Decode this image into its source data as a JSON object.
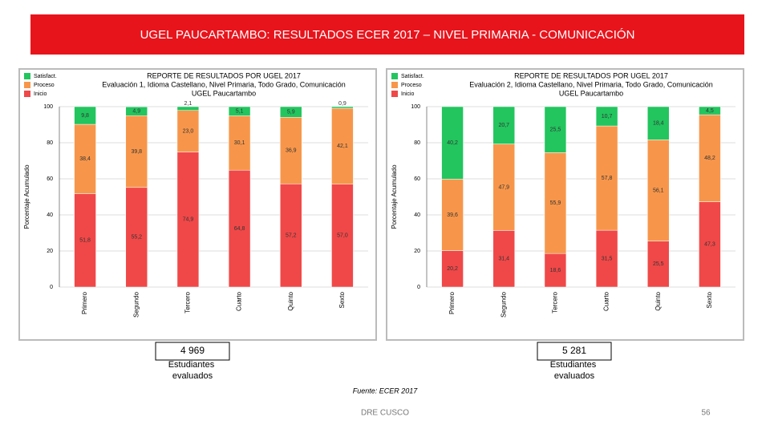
{
  "title": "UGEL PAUCARTAMBO: RESULTADOS ECER 2017 – NIVEL PRIMARIA - COMUNICACIÓN",
  "chart_data": [
    {
      "type": "bar",
      "stacked": true,
      "title": "REPORTE DE RESULTADOS POR UGEL 2017",
      "subtitle": "Evaluación 1, Idioma Castellano, Nivel Primaria, Todo Grado, Comunicación",
      "subtitle2": "UGEL Paucartambo",
      "ylabel": "Porcentaje Acumulado",
      "categories": [
        "Primero",
        "Segundo",
        "Tercero",
        "Cuarto",
        "Quinto",
        "Sexto"
      ],
      "series": [
        {
          "name": "Inicio",
          "color": "#f04848",
          "values": [
            51.8,
            55.2,
            74.9,
            64.8,
            57.2,
            57.0
          ],
          "value_labels": [
            "51,8",
            "55,2",
            "74,9",
            "64,8",
            "57,2",
            "57,0"
          ]
        },
        {
          "name": "Proceso",
          "color": "#f7964a",
          "values": [
            38.4,
            39.8,
            23.0,
            30.1,
            36.9,
            42.1
          ],
          "value_labels": [
            "38,4",
            "39,8",
            "23,0",
            "30,1",
            "36,9",
            "42,1"
          ]
        },
        {
          "name": "Satisfact.",
          "color": "#22c55e",
          "values": [
            9.8,
            4.9,
            2.1,
            5.1,
            5.9,
            0.9
          ],
          "value_labels": [
            "9,8",
            "4,9",
            "2,1",
            "5,1",
            "5,9",
            "0,9"
          ]
        }
      ],
      "ylim": [
        0,
        100
      ],
      "yticks": [
        0,
        20,
        40,
        60,
        80,
        100
      ],
      "grid": true,
      "legend": "top-left",
      "count": "4 969",
      "count_label": "Estudiantes evaluados"
    },
    {
      "type": "bar",
      "stacked": true,
      "title": "REPORTE DE RESULTADOS POR UGEL 2017",
      "subtitle": "Evaluación 2, Idioma Castellano, Nivel Primaria, Todo Grado, Comunicación",
      "subtitle2": "UGEL Paucartambo",
      "ylabel": "Porcentaje Acumulado",
      "categories": [
        "Primero",
        "Segundo",
        "Tercero",
        "Cuarto",
        "Quinto",
        "Sexto"
      ],
      "series": [
        {
          "name": "Inicio",
          "color": "#f04848",
          "values": [
            20.2,
            31.4,
            18.6,
            31.5,
            25.5,
            47.3
          ],
          "value_labels": [
            "20,2",
            "31,4",
            "18,6",
            "31,5",
            "25,5",
            "47,3"
          ]
        },
        {
          "name": "Proceso",
          "color": "#f7964a",
          "values": [
            39.6,
            47.9,
            55.9,
            57.8,
            56.1,
            48.2
          ],
          "value_labels": [
            "39,6",
            "47,9",
            "55,9",
            "57,8",
            "56,1",
            "48,2"
          ]
        },
        {
          "name": "Satisfact.",
          "color": "#22c55e",
          "values": [
            40.2,
            20.7,
            25.5,
            10.7,
            18.4,
            4.5
          ],
          "value_labels": [
            "40,2",
            "20,7",
            "25,5",
            "10,7",
            "18,4",
            "4,5"
          ]
        }
      ],
      "ylim": [
        0,
        100
      ],
      "yticks": [
        0,
        20,
        40,
        60,
        80,
        100
      ],
      "grid": true,
      "legend": "top-left",
      "count": "5 281",
      "count_label": "Estudiantes evaluados"
    }
  ],
  "source": "Fuente: ECER 2017",
  "footer": "DRE CUSCO",
  "page": "56"
}
